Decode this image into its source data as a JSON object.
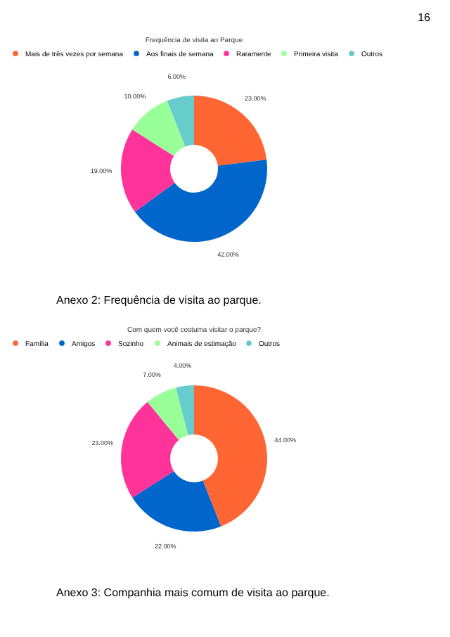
{
  "chart_data": [
    {
      "type": "donut",
      "title": "Frequência de visita ao Parque",
      "categories": [
        "Mais de três vezes por semana",
        "Aos finais de semana",
        "Raramente",
        "Primeira visita",
        "Outros"
      ],
      "values": [
        23,
        42,
        19,
        10,
        6
      ],
      "value_labels": [
        "23.00%",
        "42.00%",
        "19.00%",
        "10.00%",
        "6.00%"
      ],
      "colors": [
        "#ff6633",
        "#0066cc",
        "#ff3399",
        "#99ff99",
        "#66cccc"
      ],
      "legend": "top",
      "annotations": [
        "16",
        "Anexo 2: Frequência de visita ao parque."
      ]
    },
    {
      "type": "donut",
      "title": "Com quem você costuma visitar o parque?",
      "categories": [
        "Família",
        "Amigos",
        "Sozinho",
        "Animais de estimação",
        "Outros"
      ],
      "values": [
        44,
        22,
        23,
        7,
        4
      ],
      "value_labels": [
        "44.00%",
        "22.00%",
        "23.00%",
        "7.00%",
        "4.00%"
      ],
      "colors": [
        "#ff6633",
        "#0066cc",
        "#ff3399",
        "#99ff99",
        "#66cccc"
      ],
      "legend": "top",
      "annotations": [
        "Anexo 3: Companhia mais comum de visita ao parque."
      ]
    }
  ]
}
